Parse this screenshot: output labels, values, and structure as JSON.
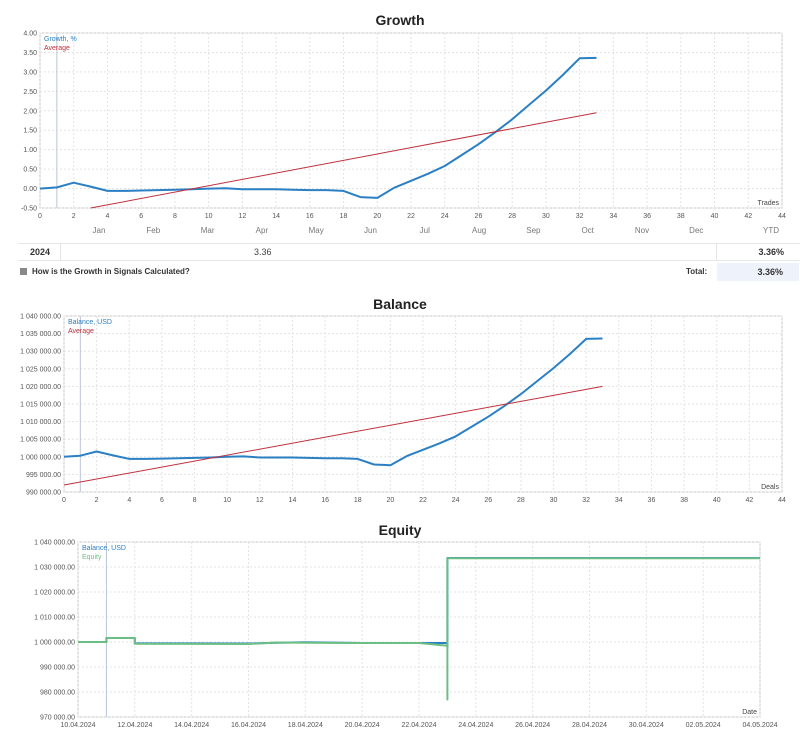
{
  "charts": {
    "growth": {
      "title": "Growth",
      "corner_label": "Trades",
      "legend": [
        {
          "label": "Growth, %",
          "color": "#2b7fc4"
        },
        {
          "label": "Average",
          "color": "#c0303c"
        }
      ]
    },
    "balance": {
      "title": "Balance",
      "corner_label": "Deals",
      "legend": [
        {
          "label": "Balance, USD",
          "color": "#2b7fc4"
        },
        {
          "label": "Average",
          "color": "#c0303c"
        }
      ]
    },
    "equity": {
      "title": "Equity",
      "corner_label": "Date",
      "legend": [
        {
          "label": "Balance, USD",
          "color": "#2b7fc4"
        },
        {
          "label": "Equity",
          "color": "#6cbf84"
        }
      ]
    }
  },
  "growth_table": {
    "months": [
      "Jan",
      "Feb",
      "Mar",
      "Apr",
      "May",
      "Jun",
      "Jul",
      "Aug",
      "Sep",
      "Oct",
      "Nov",
      "Dec"
    ],
    "ytd_header": "YTD",
    "year": "2024",
    "month_value": "3.36",
    "ytd_value": "3.36%",
    "info_link": "How is the Growth in Signals Calculated?",
    "total_label": "Total:",
    "total_value": "3.36%"
  },
  "chart_data": [
    {
      "type": "line",
      "title": "Growth",
      "xlabel": "Trades",
      "xlim": [
        0,
        44
      ],
      "ylim": [
        -0.5,
        4.0
      ],
      "xticks": [
        0,
        2,
        4,
        6,
        8,
        10,
        12,
        14,
        16,
        18,
        20,
        22,
        24,
        26,
        28,
        30,
        32,
        34,
        36,
        38,
        40,
        42,
        44
      ],
      "yticks": [
        -0.5,
        0,
        0.5,
        1,
        1.5,
        2,
        2.5,
        3,
        3.5,
        4
      ],
      "ytick_labels": [
        "-0.50",
        "0.00",
        "0.50",
        "1.00",
        "1.50",
        "2.00",
        "2.50",
        "3.00",
        "3.50",
        "4.00"
      ],
      "series": [
        {
          "name": "Growth, %",
          "color": "#2b7fc4",
          "x": [
            0,
            1,
            2,
            3,
            4,
            5,
            6,
            7,
            8,
            9,
            10,
            11,
            12,
            13,
            14,
            15,
            16,
            17,
            18,
            19,
            20,
            21,
            22,
            23,
            24,
            25,
            26,
            27,
            28,
            29,
            30,
            31,
            32,
            33
          ],
          "y": [
            0,
            0.03,
            0.15,
            0.05,
            -0.06,
            -0.06,
            -0.05,
            -0.04,
            -0.03,
            -0.02,
            0,
            0.01,
            -0.02,
            -0.02,
            -0.02,
            -0.03,
            -0.04,
            -0.04,
            -0.06,
            -0.22,
            -0.24,
            0.02,
            0.2,
            0.38,
            0.58,
            0.86,
            1.14,
            1.45,
            1.78,
            2.15,
            2.52,
            2.92,
            3.35,
            3.36
          ]
        },
        {
          "name": "Average",
          "color": "#c0303c",
          "x": [
            3,
            33
          ],
          "y": [
            -0.5,
            1.95
          ]
        }
      ]
    },
    {
      "type": "line",
      "title": "Balance",
      "xlabel": "Deals",
      "xlim": [
        0,
        44
      ],
      "ylim": [
        990000,
        1040000
      ],
      "xticks": [
        0,
        2,
        4,
        6,
        8,
        10,
        12,
        14,
        16,
        18,
        20,
        22,
        24,
        26,
        28,
        30,
        32,
        34,
        36,
        38,
        40,
        42,
        44
      ],
      "yticks": [
        990000,
        995000,
        1000000,
        1005000,
        1010000,
        1015000,
        1020000,
        1025000,
        1030000,
        1035000,
        1040000
      ],
      "ytick_labels": [
        "990 000.00",
        "995 000.00",
        "1 000 000.00",
        "1 005 000.00",
        "1 010 000.00",
        "1 015 000.00",
        "1 020 000.00",
        "1 025 000.00",
        "1 030 000.00",
        "1 035 000.00",
        "1 040 000.00"
      ],
      "series": [
        {
          "name": "Balance, USD",
          "color": "#2b7fc4",
          "x": [
            0,
            1,
            2,
            3,
            4,
            5,
            6,
            7,
            8,
            9,
            10,
            11,
            12,
            13,
            14,
            15,
            16,
            17,
            18,
            19,
            20,
            21,
            22,
            23,
            24,
            25,
            26,
            27,
            28,
            29,
            30,
            31,
            32,
            33
          ],
          "y": [
            1000000,
            1000300,
            1001500,
            1000400,
            999400,
            999400,
            999500,
            999600,
            999700,
            999800,
            1000000,
            1000100,
            999800,
            999800,
            999800,
            999700,
            999600,
            999600,
            999400,
            997800,
            997600,
            1000200,
            1002000,
            1003800,
            1005800,
            1008600,
            1011400,
            1014500,
            1017800,
            1021500,
            1025200,
            1029200,
            1033500,
            1033600
          ]
        },
        {
          "name": "Average",
          "color": "#c0303c",
          "x": [
            0,
            33
          ],
          "y": [
            992000,
            1020000
          ]
        }
      ]
    },
    {
      "type": "line",
      "title": "Equity",
      "xlabel": "Date",
      "ylim": [
        970000,
        1040000
      ],
      "x_tick_labels": [
        "10.04.2024",
        "12.04.2024",
        "14.04.2024",
        "16.04.2024",
        "18.04.2024",
        "20.04.2024",
        "22.04.2024",
        "24.04.2024",
        "26.04.2024",
        "28.04.2024",
        "30.04.2024",
        "02.05.2024",
        "04.05.2024"
      ],
      "yticks": [
        970000,
        980000,
        990000,
        1000000,
        1010000,
        1020000,
        1030000,
        1040000
      ],
      "ytick_labels": [
        "970 000.00",
        "980 000.00",
        "990 000.00",
        "1 000 000.00",
        "1 010 000.00",
        "1 020 000.00",
        "1 030 000.00",
        "1 040 000.00"
      ],
      "series": [
        {
          "name": "Balance, USD",
          "color": "#2b7fc4",
          "x": [
            "10.04.2024",
            "11.04.2024",
            "11.04.2024",
            "12.04.2024",
            "12.04.2024",
            "16.04.2024",
            "17.04.2024",
            "18.04.2024",
            "20.04.2024",
            "23.04.2024",
            "23.04.2024",
            "23.04.2024",
            "04.05.2024"
          ],
          "y": [
            1000000,
            1000000,
            1001600,
            1001600,
            999500,
            999400,
            999700,
            999900,
            999600,
            999600,
            998000,
            1033600,
            1033600
          ]
        },
        {
          "name": "Equity",
          "color": "#6cbf84",
          "x": [
            "10.04.2024",
            "11.04.2024",
            "11.04.2024",
            "12.04.2024",
            "12.04.2024",
            "16.04.2024",
            "17.04.2024",
            "18.04.2024",
            "20.04.2024",
            "22.04.2024",
            "23.04.2024",
            "23.04.2024",
            "23.04.2024",
            "23.04.2024",
            "23.04.2024",
            "23.04.2024",
            "23.04.2024",
            "04.05.2024"
          ],
          "y": [
            1000000,
            1000000,
            1001600,
            1001600,
            999300,
            999200,
            999800,
            999700,
            999600,
            999600,
            998500,
            989000,
            995000,
            984000,
            992000,
            977000,
            1033500,
            1033500
          ]
        }
      ]
    }
  ]
}
